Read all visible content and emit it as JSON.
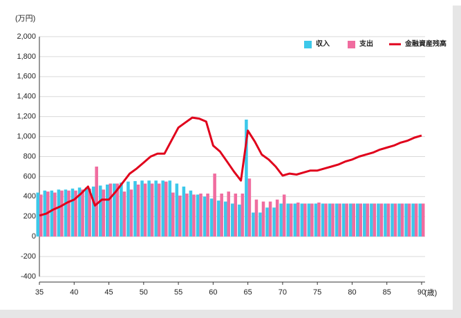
{
  "chart_data": {
    "type": "bar",
    "y_label": "(万円)",
    "x_label": "(歳)",
    "x": [
      35,
      36,
      37,
      38,
      39,
      40,
      41,
      42,
      43,
      44,
      45,
      46,
      47,
      48,
      49,
      50,
      51,
      52,
      53,
      54,
      55,
      56,
      57,
      58,
      59,
      60,
      61,
      62,
      63,
      64,
      65,
      66,
      67,
      68,
      69,
      70,
      71,
      72,
      73,
      74,
      75,
      76,
      77,
      78,
      79,
      80,
      81,
      82,
      83,
      84,
      85,
      86,
      87,
      88,
      89,
      90
    ],
    "xlim": [
      35,
      90
    ],
    "xticks": [
      35,
      40,
      45,
      50,
      55,
      60,
      65,
      70,
      75,
      80,
      85,
      90
    ],
    "ylim": [
      -400,
      2000
    ],
    "yticks": [
      -400,
      -200,
      0,
      200,
      400,
      600,
      800,
      {
        "value": 1000,
        "label": "1,000"
      },
      {
        "value": 1200,
        "label": "1,200"
      },
      {
        "value": 1400,
        "label": "1,400"
      },
      {
        "value": 1600,
        "label": "1,600"
      },
      {
        "value": 1800,
        "label": "1,800"
      },
      {
        "value": 2000,
        "label": "2,000"
      }
    ],
    "grid": true,
    "legend": "top-right",
    "series": [
      {
        "name": "収入",
        "type": "bar",
        "color": "#3cc8ea",
        "values": [
          440,
          460,
          460,
          470,
          470,
          480,
          490,
          490,
          500,
          510,
          520,
          530,
          540,
          550,
          555,
          560,
          560,
          560,
          560,
          560,
          530,
          500,
          460,
          420,
          400,
          380,
          360,
          350,
          330,
          320,
          1170,
          240,
          240,
          290,
          290,
          330,
          330,
          330,
          330,
          330,
          330,
          330,
          330,
          330,
          330,
          330,
          330,
          330,
          330,
          330,
          330,
          330,
          330,
          330,
          330,
          330
        ]
      },
      {
        "name": "支出",
        "type": "bar",
        "color": "#f06c9f",
        "values": [
          420,
          450,
          440,
          460,
          460,
          460,
          470,
          480,
          700,
          470,
          530,
          530,
          450,
          470,
          520,
          530,
          530,
          530,
          550,
          440,
          410,
          430,
          420,
          430,
          430,
          630,
          430,
          450,
          430,
          430,
          580,
          370,
          350,
          350,
          370,
          420,
          330,
          340,
          330,
          330,
          340,
          330,
          330,
          330,
          330,
          330,
          330,
          330,
          330,
          330,
          330,
          330,
          330,
          330,
          330,
          330
        ]
      },
      {
        "name": "金融資産残高",
        "type": "line",
        "color": "#e0001b",
        "values": [
          210,
          230,
          270,
          300,
          340,
          370,
          430,
          500,
          310,
          370,
          370,
          450,
          540,
          630,
          680,
          740,
          800,
          830,
          830,
          960,
          1090,
          1140,
          1190,
          1180,
          1150,
          910,
          850,
          750,
          650,
          560,
          1060,
          950,
          820,
          770,
          700,
          610,
          630,
          620,
          640,
          660,
          660,
          680,
          700,
          720,
          750,
          770,
          800,
          820,
          840,
          870,
          890,
          910,
          940,
          960,
          990,
          1010
        ]
      }
    ]
  }
}
